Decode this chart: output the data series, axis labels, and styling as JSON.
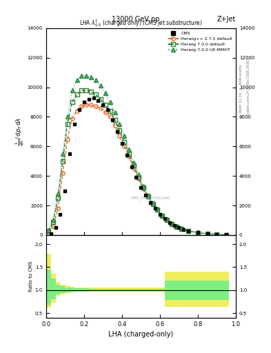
{
  "title_top": "13000 GeV pp",
  "title_right": "Z+Jet",
  "plot_title": "LHA $\\lambda^1_{0.5}$ (charged only) (CMS jet substructure)",
  "xlabel": "LHA (charged-only)",
  "ylabel_main": "$\\frac{1}{\\mathrm{d}N}\\,/\\,\\mathrm{d}p_T\\,\\mathrm{d}\\lambda$",
  "ylabel_ratio": "Ratio to CMS",
  "right_label_top": "Rivet 3.1.10, $\\geq$ 400k events",
  "right_label_bot": "mcplots.cern.ch [arXiv:1306.3436]",
  "watermark": "CMS_2021_I1932460",
  "xlim": [
    0.0,
    1.0
  ],
  "ylim_main": [
    0,
    14000
  ],
  "ylim_ratio": [
    0.4,
    2.2
  ],
  "yticks_main": [
    0,
    2000,
    4000,
    6000,
    8000,
    10000,
    12000,
    14000
  ],
  "yticks_ratio": [
    0.5,
    1.0,
    1.5,
    2.0
  ],
  "cms_x": [
    0.0,
    0.025,
    0.05,
    0.075,
    0.1,
    0.125,
    0.15,
    0.175,
    0.2,
    0.225,
    0.25,
    0.275,
    0.3,
    0.325,
    0.35,
    0.375,
    0.4,
    0.425,
    0.45,
    0.475,
    0.5,
    0.525,
    0.55,
    0.575,
    0.6,
    0.625,
    0.65,
    0.675,
    0.7,
    0.725,
    0.75,
    0.8,
    0.85,
    0.9,
    0.95,
    1.0
  ],
  "cms_y": [
    0,
    100,
    500,
    1400,
    3000,
    5500,
    7500,
    8500,
    9000,
    9200,
    9300,
    9100,
    8800,
    8500,
    7800,
    7000,
    6200,
    5400,
    4600,
    3900,
    3200,
    2700,
    2200,
    1800,
    1400,
    1100,
    850,
    650,
    500,
    380,
    280,
    180,
    100,
    50,
    20,
    5
  ],
  "herwig_pp_x": [
    0.0125,
    0.0375,
    0.0625,
    0.0875,
    0.1125,
    0.1375,
    0.1625,
    0.1875,
    0.2125,
    0.2375,
    0.2625,
    0.2875,
    0.3125,
    0.3375,
    0.3625,
    0.3875,
    0.4125,
    0.4375,
    0.4625,
    0.4875,
    0.5125,
    0.5375,
    0.5625,
    0.5875,
    0.6125,
    0.6375,
    0.6625,
    0.6875,
    0.7125,
    0.75,
    0.8,
    0.85,
    0.9,
    0.95
  ],
  "herwig_pp_y": [
    150,
    600,
    1800,
    4200,
    6500,
    7900,
    8400,
    8700,
    8800,
    8800,
    8700,
    8600,
    8300,
    8000,
    7400,
    6700,
    6000,
    5300,
    4500,
    3800,
    3100,
    2600,
    2100,
    1700,
    1300,
    1000,
    750,
    570,
    430,
    290,
    160,
    90,
    45,
    15
  ],
  "herwig700_x": [
    0.0125,
    0.0375,
    0.0625,
    0.0875,
    0.1125,
    0.1375,
    0.1625,
    0.1875,
    0.2125,
    0.2375,
    0.2625,
    0.2875,
    0.3125,
    0.3375,
    0.3625,
    0.3875,
    0.4125,
    0.4375,
    0.4625,
    0.4875,
    0.5125,
    0.5375,
    0.5625,
    0.5875,
    0.6125,
    0.6375,
    0.6625,
    0.6875,
    0.7125,
    0.75,
    0.8,
    0.85,
    0.9,
    0.95
  ],
  "herwig700_y": [
    250,
    900,
    2500,
    5000,
    7500,
    9000,
    9500,
    9800,
    9800,
    9700,
    9500,
    9200,
    8800,
    8400,
    7800,
    7100,
    6300,
    5500,
    4700,
    3900,
    3200,
    2600,
    2100,
    1700,
    1300,
    1000,
    750,
    560,
    420,
    270,
    150,
    80,
    40,
    12
  ],
  "herwig700ue_x": [
    0.0125,
    0.0375,
    0.0625,
    0.0875,
    0.1125,
    0.1375,
    0.1625,
    0.1875,
    0.2125,
    0.2375,
    0.2625,
    0.2875,
    0.3125,
    0.3375,
    0.3625,
    0.3875,
    0.4125,
    0.4375,
    0.4625,
    0.4875,
    0.5125,
    0.5375,
    0.5625,
    0.5875,
    0.6125,
    0.6375,
    0.6625,
    0.6875,
    0.7125,
    0.75,
    0.8,
    0.85,
    0.9,
    0.95
  ],
  "herwig700ue_y": [
    300,
    1000,
    2800,
    5500,
    8000,
    9800,
    10500,
    10800,
    10800,
    10700,
    10500,
    10100,
    9600,
    9000,
    8300,
    7500,
    6700,
    5800,
    4900,
    4100,
    3300,
    2700,
    2200,
    1750,
    1350,
    1050,
    790,
    590,
    440,
    280,
    160,
    85,
    42,
    13
  ],
  "ratio_yellow_lo": [
    0.62,
    0.73,
    0.88,
    0.9,
    0.93,
    0.95,
    0.96,
    0.97,
    0.97,
    0.97,
    0.97,
    0.97,
    0.97,
    0.97,
    0.97,
    0.97,
    0.97,
    0.97,
    0.97,
    0.97,
    0.97,
    0.97,
    0.97,
    0.97,
    0.97,
    0.63,
    0.63,
    0.63,
    0.63,
    0.63,
    0.63,
    0.63,
    0.63,
    0.63
  ],
  "ratio_yellow_hi": [
    1.8,
    1.35,
    1.18,
    1.12,
    1.1,
    1.07,
    1.06,
    1.05,
    1.05,
    1.05,
    1.05,
    1.05,
    1.05,
    1.05,
    1.05,
    1.05,
    1.05,
    1.05,
    1.05,
    1.05,
    1.05,
    1.05,
    1.05,
    1.05,
    1.05,
    1.4,
    1.4,
    1.4,
    1.4,
    1.4,
    1.4,
    1.4,
    1.4,
    1.4
  ],
  "ratio_green_lo": [
    0.68,
    0.8,
    0.91,
    0.93,
    0.95,
    0.96,
    0.97,
    0.97,
    0.97,
    0.98,
    0.98,
    0.98,
    0.98,
    0.98,
    0.98,
    0.98,
    0.98,
    0.98,
    0.98,
    0.98,
    0.98,
    0.98,
    0.98,
    0.98,
    0.98,
    0.78,
    0.78,
    0.78,
    0.78,
    0.78,
    0.78,
    0.78,
    0.78,
    0.78
  ],
  "ratio_green_hi": [
    1.45,
    1.25,
    1.12,
    1.08,
    1.06,
    1.05,
    1.04,
    1.04,
    1.04,
    1.03,
    1.03,
    1.03,
    1.03,
    1.03,
    1.03,
    1.03,
    1.03,
    1.03,
    1.03,
    1.03,
    1.03,
    1.03,
    1.03,
    1.03,
    1.03,
    1.2,
    1.2,
    1.2,
    1.2,
    1.2,
    1.2,
    1.2,
    1.2,
    1.2
  ],
  "color_cms": "#000000",
  "color_herwig_pp": "#e07030",
  "color_herwig700": "#308030",
  "color_herwig700ue": "#40c0a0",
  "color_yellow_band": "#eeee60",
  "color_green_band": "#80ee80",
  "background_color": "#ffffff"
}
